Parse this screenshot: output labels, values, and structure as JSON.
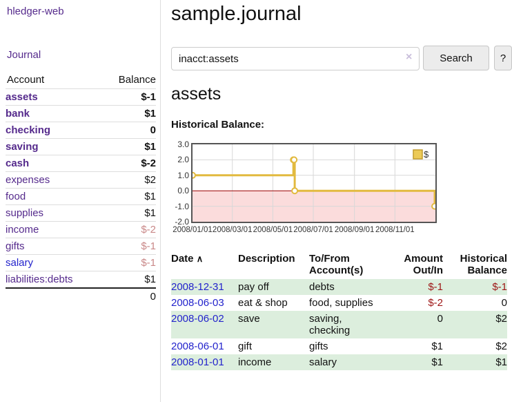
{
  "app": {
    "brand": "hledger-web",
    "nav_journal": "Journal"
  },
  "sidebar": {
    "header": {
      "account": "Account",
      "balance": "Balance"
    },
    "rows": [
      {
        "name": "assets",
        "balance": "$-1"
      },
      {
        "name": "bank",
        "balance": "$1"
      },
      {
        "name": "checking",
        "balance": "0"
      },
      {
        "name": "saving",
        "balance": "$1"
      },
      {
        "name": "cash",
        "balance": "$-2"
      },
      {
        "name": "expenses",
        "balance": "$2"
      },
      {
        "name": "food",
        "balance": "$1"
      },
      {
        "name": "supplies",
        "balance": "$1"
      },
      {
        "name": "income",
        "balance": "$-2"
      },
      {
        "name": "gifts",
        "balance": "$-1"
      },
      {
        "name": "salary",
        "balance": "$-1"
      },
      {
        "name": "liabilities:debts",
        "balance": "$1"
      }
    ],
    "total": "0"
  },
  "main": {
    "title": "sample.journal",
    "search": {
      "value": "inacct:assets",
      "clear_icon": "×",
      "button": "Search",
      "help": "?"
    },
    "account_title": "assets",
    "chart_label": "Historical Balance:",
    "register": {
      "headers": {
        "date": "Date",
        "sort_icon": "∧",
        "description": "Description",
        "tofrom_line1": "To/From",
        "tofrom_line2": "Account(s)",
        "amount_line1": "Amount",
        "amount_line2": "Out/In",
        "hist_line1": "Historical",
        "hist_line2": "Balance"
      },
      "rows": [
        {
          "date": "2008-12-31",
          "description": "pay off",
          "accounts": "debts",
          "amount": "$-1",
          "balance": "$-1"
        },
        {
          "date": "2008-06-03",
          "description": "eat & shop",
          "accounts": "food, supplies",
          "amount": "$-2",
          "balance": "0"
        },
        {
          "date": "2008-06-02",
          "description": "save",
          "accounts": "saving, checking",
          "amount": "0",
          "balance": "$2"
        },
        {
          "date": "2008-06-01",
          "description": "gift",
          "accounts": "gifts",
          "amount": "$1",
          "balance": "$2"
        },
        {
          "date": "2008-01-01",
          "description": "income",
          "accounts": "salary",
          "amount": "$1",
          "balance": "$1"
        }
      ]
    }
  },
  "chart_data": {
    "type": "line",
    "step": true,
    "title": "Historical Balance:",
    "legend": [
      {
        "label": "$",
        "color": "#e8c04a"
      }
    ],
    "legend_position": "top-right",
    "x": [
      "2008-01-01",
      "2008-06-01",
      "2008-06-02",
      "2008-06-03",
      "2008-12-31"
    ],
    "series": [
      {
        "name": "$",
        "values": [
          1,
          2,
          2,
          0,
          -1
        ]
      }
    ],
    "xlim": [
      "2008-01-01",
      "2009-01-01"
    ],
    "ylim": [
      -2,
      3
    ],
    "yticks": [
      "3.0",
      "2.0",
      "1.0",
      "0.0",
      "-1.0",
      "-2.0"
    ],
    "xticks": [
      "2008/01/01",
      "2008/03/01",
      "2008/05/01",
      "2008/07/01",
      "2008/09/01",
      "2008/11/01"
    ],
    "grid": true
  },
  "colors": {
    "accent_purple": "#552a8c",
    "link_blue": "#2323cc",
    "negative_strong": "#9e1616",
    "negative_faded": "#c98888",
    "row_green": "#dceedd",
    "line_gold": "#e2ba3f",
    "legend_fill": "#ecca57",
    "legend_stroke": "#c19b2e",
    "negative_region": "#fbdcdc",
    "zero_line": "#990000",
    "gridline": "#d8d8d8"
  }
}
